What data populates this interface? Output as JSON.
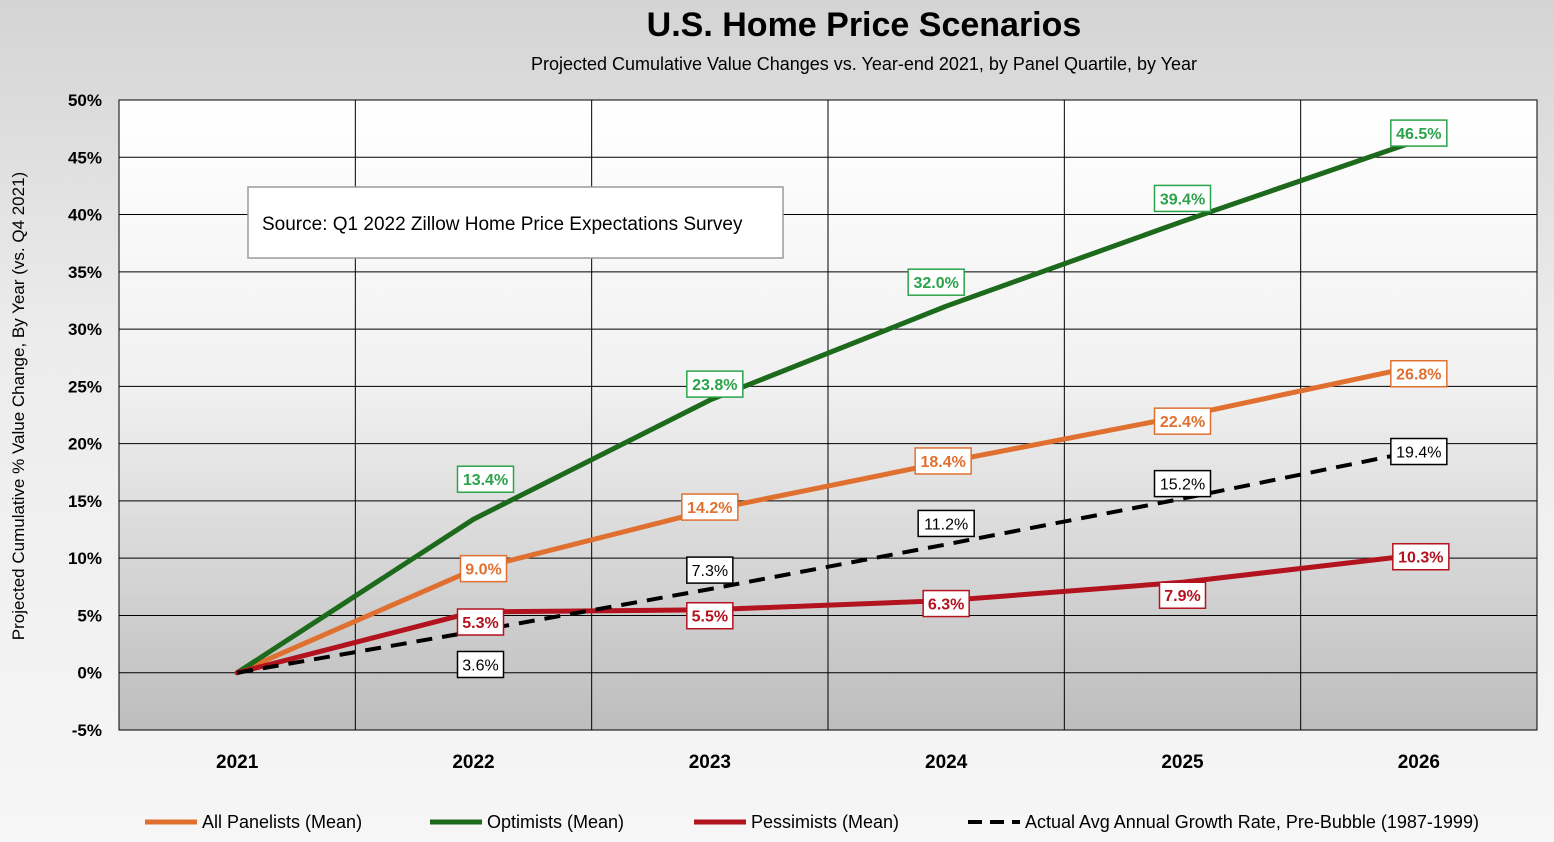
{
  "chart_data": {
    "type": "line",
    "title": "U.S. Home Price Scenarios",
    "subtitle": "Projected Cumulative Value Changes vs. Year-end 2021, by Panel Quartile, by Year",
    "ylabel": "Projected Cumulative % Value Change, By Year  (vs. Q4 2021)",
    "xlabel": "",
    "categories": [
      "2021",
      "2022",
      "2023",
      "2024",
      "2025",
      "2026"
    ],
    "yticks": [
      "-5%",
      "0%",
      "5%",
      "10%",
      "15%",
      "20%",
      "25%",
      "30%",
      "35%",
      "40%",
      "45%",
      "50%"
    ],
    "ylim": [
      -5,
      50
    ],
    "grid": true,
    "legend_position": "bottom",
    "annotation": "Source: Q1 2022 Zillow Home Price Expectations Survey",
    "series": [
      {
        "name": "All Panelists (Mean)",
        "color": "#e07030",
        "dashed": false,
        "values": [
          0,
          9.0,
          14.2,
          18.4,
          22.4,
          26.8
        ],
        "labels": [
          "",
          "9.0%",
          "14.2%",
          "18.4%",
          "22.4%",
          "26.8%"
        ]
      },
      {
        "name": "Optimists (Mean)",
        "color": "#1d6a1d",
        "label_color": "#2aa34a",
        "dashed": false,
        "values": [
          0,
          13.4,
          23.8,
          32.0,
          39.4,
          46.5
        ],
        "labels": [
          "",
          "13.4%",
          "23.8%",
          "32.0%",
          "39.4%",
          "46.5%"
        ]
      },
      {
        "name": "Pessimists (Mean)",
        "color": "#b3121f",
        "dashed": false,
        "values": [
          0,
          5.3,
          5.5,
          6.3,
          7.9,
          10.3
        ],
        "labels": [
          "",
          "5.3%",
          "5.5%",
          "6.3%",
          "7.9%",
          "10.3%"
        ]
      },
      {
        "name": "Actual Avg Annual Growth Rate, Pre-Bubble (1987-1999)",
        "color": "#000000",
        "dashed": true,
        "values": [
          0,
          3.6,
          7.3,
          11.2,
          15.2,
          19.4
        ],
        "labels": [
          "",
          "3.6%",
          "7.3%",
          "11.2%",
          "15.2%",
          "19.4%"
        ]
      }
    ]
  }
}
